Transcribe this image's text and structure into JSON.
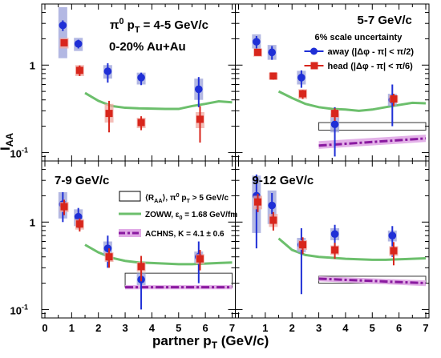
{
  "chart_data": {
    "type": "scatter",
    "xlabel": "partner p_T (GeV/c)",
    "ylabel": "I_AA",
    "xlim": [
      0,
      7
    ],
    "ylim": [
      0.08,
      5
    ],
    "yscale": "log",
    "x_tick_labels": [
      "0",
      "1",
      "2",
      "3",
      "4",
      "5",
      "6",
      "7"
    ],
    "y_tick_labels": [
      "10^-1",
      "1"
    ],
    "grid": false,
    "legends": {
      "series": {
        "title": "6% scale uncertainty",
        "away": "away (|Δφ - π| < π/2)",
        "head": "head (|Δφ - π| < π/6)"
      },
      "models": {
        "raa": "⟨R_AA⟩, π^0 p_T > 5 GeV/c",
        "zoww": "ZOWW, ε_0 = 1.68 GeV/fm",
        "achns": "ACHNS, K = 4.1 ± 0.6"
      }
    },
    "colors": {
      "away": "#1f2fd6",
      "head": "#d8261c",
      "zoww": "#6cbf6c",
      "achns": "#8a1aa0",
      "achns_band": "#e0a8e6",
      "away_sys": "#9aa0da",
      "head_sys": "#f0a8a0"
    },
    "panels": [
      {
        "label_lines": [
          "π^0 p_T = 4-5 GeV/c",
          "0-20% Au+Au"
        ],
        "away": [
          {
            "x": 0.67,
            "y": 2.85,
            "err": [
              0.4,
              0.4
            ],
            "sys": [
              1.2,
              4.6
            ]
          },
          {
            "x": 1.25,
            "y": 1.75,
            "err": [
              0.2,
              0.2
            ],
            "sys": [
              1.45,
              2.05
            ]
          },
          {
            "x": 2.35,
            "y": 0.85,
            "err": [
              0.22,
              0.2
            ],
            "sys": [
              0.7,
              1.0
            ]
          },
          {
            "x": 3.6,
            "y": 0.72,
            "err": [
              0.13,
              0.1
            ],
            "sys": [
              0.6,
              0.82
            ]
          },
          {
            "x": 5.75,
            "y": 0.53,
            "err": [
              0.2,
              0.2
            ],
            "sys": [
              0.4,
              0.7
            ]
          }
        ],
        "head": [
          {
            "x": 0.72,
            "y": 1.8,
            "err": [
              0.05,
              0.05
            ],
            "sys": [
              1.55,
              2.05
            ]
          },
          {
            "x": 1.3,
            "y": 0.87,
            "err": [
              0.12,
              0.12
            ],
            "sys": [
              0.75,
              1.0
            ]
          },
          {
            "x": 2.4,
            "y": 0.28,
            "err": [
              0.11,
              0.11
            ],
            "sys": [
              0.22,
              0.36
            ]
          },
          {
            "x": 3.6,
            "y": 0.22,
            "err": [
              0.04,
              0.04
            ],
            "sys": [
              0.19,
              0.25
            ]
          },
          {
            "x": 5.8,
            "y": 0.24,
            "err": [
              0.11,
              0.1
            ],
            "sys": [
              0.19,
              0.29
            ]
          }
        ],
        "zoww": {
          "x": [
            1.5,
            2.0,
            2.5,
            3.0,
            3.5,
            4.0,
            4.5,
            5.0,
            5.5,
            6.0,
            6.5,
            7.0
          ],
          "y": [
            0.48,
            0.39,
            0.34,
            0.325,
            0.32,
            0.318,
            0.315,
            0.315,
            0.34,
            0.36,
            0.385,
            0.375
          ]
        },
        "raa_box": null,
        "achns": null
      },
      {
        "label_lines": [
          "5-7 GeV/c"
        ],
        "away": [
          {
            "x": 0.67,
            "y": 1.85,
            "err": [
              0.3,
              0.3
            ],
            "sys": [
              1.55,
              2.25
            ]
          },
          {
            "x": 1.25,
            "y": 1.4,
            "err": [
              0.25,
              0.25
            ],
            "sys": [
              1.15,
              1.7
            ]
          },
          {
            "x": 2.35,
            "y": 0.72,
            "err": [
              0.17,
              0.15
            ],
            "sys": [
              0.6,
              0.86
            ]
          },
          {
            "x": 3.6,
            "y": 0.21,
            "err": [
              0.12,
              0.12
            ],
            "sys": [
              0.17,
              0.28
            ]
          },
          {
            "x": 5.75,
            "y": 0.4,
            "err": [
              0.2,
              0.2
            ],
            "sys": [
              0.34,
              0.47
            ]
          }
        ],
        "head": [
          {
            "x": 0.72,
            "y": 1.4,
            "err": [
              0.08,
              0.08
            ],
            "sys": [
              1.25,
              1.55
            ]
          },
          {
            "x": 1.3,
            "y": 0.75,
            "err": [
              0.07,
              0.07
            ],
            "sys": [
              0.68,
              0.82
            ]
          },
          {
            "x": 2.4,
            "y": 0.47,
            "err": [
              0.06,
              0.05
            ],
            "sys": [
              0.41,
              0.53
            ]
          },
          {
            "x": 3.6,
            "y": 0.28,
            "err": [
              0.05,
              0.04
            ],
            "sys": [
              0.25,
              0.31
            ]
          },
          {
            "x": 5.8,
            "y": 0.41,
            "err": [
              0.07,
              0.06
            ],
            "sys": [
              0.37,
              0.45
            ]
          }
        ],
        "zoww": {
          "x": [
            1.5,
            2.0,
            2.5,
            3.0,
            3.5,
            4.0,
            4.5,
            5.0,
            5.5,
            6.0,
            6.5,
            7.0
          ],
          "y": [
            0.5,
            0.42,
            0.36,
            0.33,
            0.315,
            0.31,
            0.3,
            0.31,
            0.33,
            0.35,
            0.37,
            0.365
          ]
        },
        "raa_box": {
          "x": [
            3.0,
            7.0
          ],
          "y": [
            0.18,
            0.22
          ]
        },
        "achns": {
          "x": [
            3.0,
            7.0
          ],
          "y": [
            0.12,
            0.145
          ],
          "band": [
            [
              0.11,
              0.132
            ],
            [
              0.135,
              0.16
            ]
          ]
        }
      },
      {
        "label_lines": [
          "7-9 GeV/c"
        ],
        "away": [
          {
            "x": 0.67,
            "y": 1.6,
            "err": [
              0.6,
              0.6
            ],
            "sys": [
              1.1,
              2.2
            ]
          },
          {
            "x": 1.25,
            "y": 1.15,
            "err": [
              0.3,
              0.3
            ],
            "sys": [
              0.9,
              1.4
            ]
          },
          {
            "x": 2.35,
            "y": 0.5,
            "err": [
              0.2,
              0.2
            ],
            "sys": [
              0.42,
              0.6
            ]
          },
          {
            "x": 3.6,
            "y": 0.22,
            "err": [
              0.12,
              0.1
            ],
            "sys": [
              0.19,
              0.26
            ]
          },
          {
            "x": 5.75,
            "y": 0.4,
            "err": [
              0.2,
              0.2
            ],
            "sys": [
              0.34,
              0.46
            ]
          }
        ],
        "head": [
          {
            "x": 0.72,
            "y": 1.5,
            "err": [
              0.3,
              0.3
            ],
            "sys": [
              1.3,
              1.7
            ]
          },
          {
            "x": 1.3,
            "y": 0.95,
            "err": [
              0.17,
              0.15
            ],
            "sys": [
              0.82,
              1.08
            ]
          },
          {
            "x": 2.4,
            "y": 0.4,
            "err": [
              0.1,
              0.1
            ],
            "sys": [
              0.35,
              0.45
            ]
          },
          {
            "x": 3.6,
            "y": 0.31,
            "err": [
              0.1,
              0.1
            ],
            "sys": [
              0.27,
              0.35
            ]
          },
          {
            "x": 5.8,
            "y": 0.38,
            "err": [
              0.1,
              0.1
            ],
            "sys": [
              0.33,
              0.43
            ]
          }
        ],
        "zoww": {
          "x": [
            1.5,
            2.0,
            2.5,
            3.0,
            3.5,
            4.0,
            4.5,
            5.0,
            5.5,
            6.0,
            6.5,
            7.0
          ],
          "y": [
            0.55,
            0.45,
            0.39,
            0.36,
            0.345,
            0.34,
            0.335,
            0.33,
            0.33,
            0.335,
            0.34,
            0.345
          ]
        },
        "raa_box": {
          "x": [
            3.0,
            7.0
          ],
          "y": [
            0.18,
            0.26
          ]
        },
        "achns": {
          "x": [
            3.0,
            7.0
          ],
          "y": [
            0.18,
            0.18
          ],
          "band": [
            [
              0.17,
              0.17
            ],
            [
              0.19,
              0.19
            ]
          ]
        }
      },
      {
        "label_lines": [
          "9-12 GeV/c"
        ],
        "away": [
          {
            "x": 0.67,
            "y": 2.0,
            "err": [
              1.5,
              1.5
            ],
            "sys": [
              0.75,
              3.4
            ]
          },
          {
            "x": 1.25,
            "y": 1.55,
            "err": [
              0.6,
              0.6
            ],
            "sys": [
              0.95,
              2.3
            ]
          },
          {
            "x": 2.35,
            "y": 0.55,
            "err": [
              0.4,
              0.3
            ],
            "sys": [
              0.45,
              0.66
            ]
          },
          {
            "x": 3.6,
            "y": 0.73,
            "err": [
              0.3,
              0.2
            ],
            "sys": [
              0.62,
              0.85
            ]
          },
          {
            "x": 5.75,
            "y": 0.7,
            "err": [
              0.3,
              0.2
            ],
            "sys": [
              0.6,
              0.8
            ]
          }
        ],
        "head": [
          {
            "x": 0.72,
            "y": 1.7,
            "err": [
              0.4,
              0.4
            ],
            "sys": [
              1.4,
              2.0
            ]
          },
          {
            "x": 1.3,
            "y": 1.05,
            "err": [
              0.25,
              0.25
            ],
            "sys": [
              0.88,
              1.24
            ]
          },
          {
            "x": 2.4,
            "y": 0.55,
            "err": [
              0.12,
              0.12
            ],
            "sys": [
              0.48,
              0.62
            ]
          },
          {
            "x": 3.6,
            "y": 0.48,
            "err": [
              0.1,
              0.1
            ],
            "sys": [
              0.42,
              0.54
            ]
          },
          {
            "x": 5.8,
            "y": 0.47,
            "err": [
              0.15,
              0.12
            ],
            "sys": [
              0.41,
              0.53
            ]
          }
        ],
        "zoww": {
          "x": [
            1.5,
            2.0,
            2.5,
            3.0,
            3.5,
            4.0,
            4.5,
            5.0,
            5.5,
            6.0,
            6.5,
            7.0
          ],
          "y": [
            0.65,
            0.48,
            0.42,
            0.4,
            0.39,
            0.38,
            0.375,
            0.37,
            0.37,
            0.375,
            0.38,
            0.385
          ]
        },
        "raa_box": {
          "x": [
            3.0,
            7.0
          ],
          "y": [
            0.2,
            0.24
          ]
        },
        "achns": {
          "x": [
            3.0,
            7.0
          ],
          "y": [
            0.225,
            0.2
          ],
          "band": [
            [
              0.21,
              0.185
            ],
            [
              0.24,
              0.215
            ]
          ]
        }
      }
    ]
  }
}
